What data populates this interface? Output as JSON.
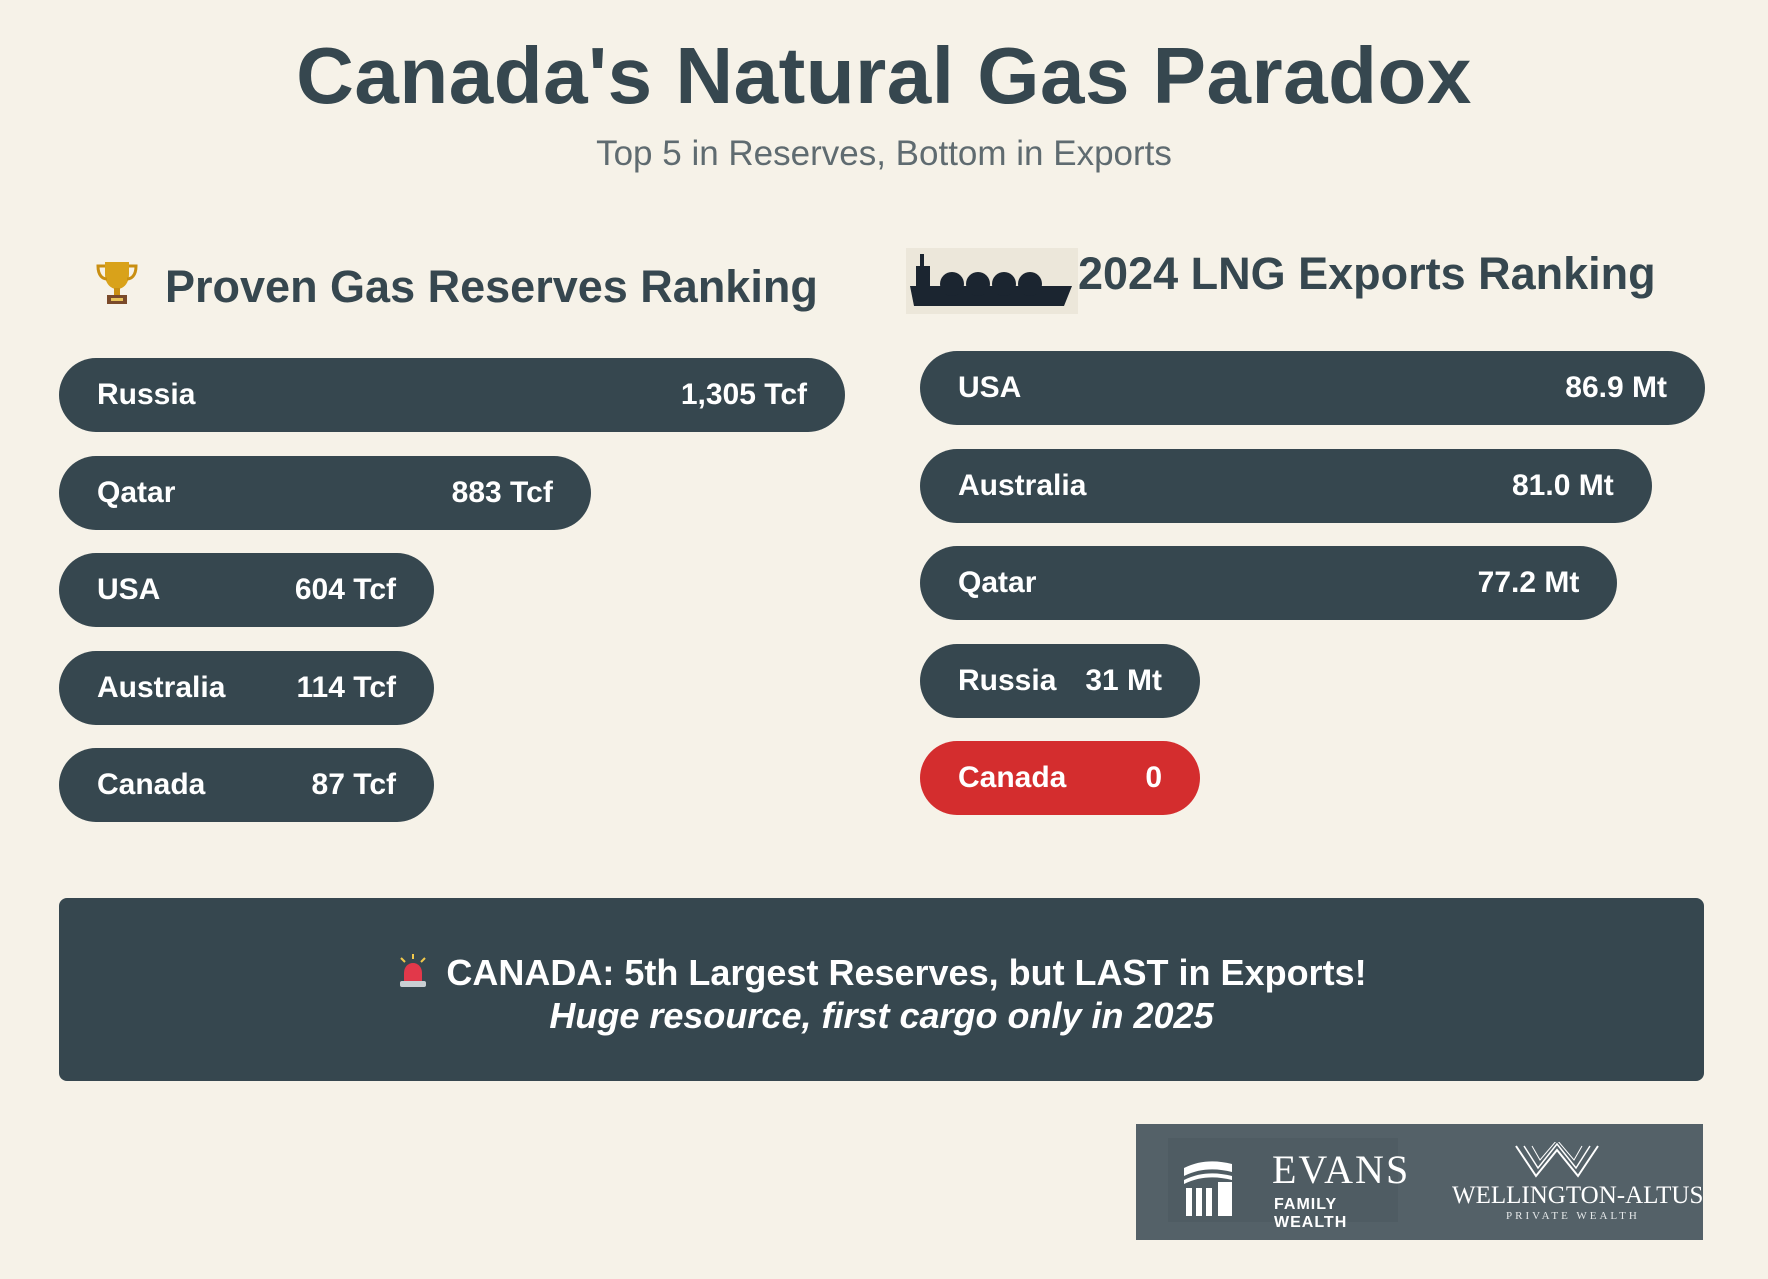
{
  "header": {
    "title": "Canada's Natural Gas Paradox",
    "subtitle": "Top 5 in Reserves, Bottom in Exports"
  },
  "reserves": {
    "heading": "Proven Gas Reserves Ranking",
    "icon": "trophy-icon"
  },
  "exports": {
    "heading": "2024 LNG Exports Ranking",
    "icon": "lng-ship-icon"
  },
  "chart_data": [
    {
      "type": "bar",
      "title": "Proven Gas Reserves Ranking",
      "orientation": "horizontal",
      "categories": [
        "Russia",
        "Qatar",
        "USA",
        "Australia",
        "Canada"
      ],
      "values": [
        1305,
        883,
        604,
        114,
        87
      ],
      "value_labels": [
        "1,305 Tcf",
        "883 Tcf",
        "604 Tcf",
        "114 Tcf",
        "87 Tcf"
      ],
      "unit": "Tcf",
      "bar_color": "#36474f"
    },
    {
      "type": "bar",
      "title": "2024 LNG Exports Ranking",
      "orientation": "horizontal",
      "categories": [
        "USA",
        "Australia",
        "Qatar",
        "Russia",
        "Canada"
      ],
      "values": [
        86.9,
        81.0,
        77.2,
        31,
        0
      ],
      "value_labels": [
        "86.9 Mt",
        "81.0 Mt",
        "77.2 Mt",
        "31 Mt",
        "0"
      ],
      "unit": "Mt",
      "bar_color": "#36474f",
      "highlight": {
        "category": "Canada",
        "color": "#d42d2e"
      }
    }
  ],
  "banner": {
    "icon": "siren-icon",
    "line1": "CANADA: 5th Largest Reserves, but LAST in Exports!",
    "line2": "Huge resource, first cargo only in 2025"
  },
  "logos": {
    "evans_name": "EVANS",
    "evans_sub": "FAMILY WEALTH",
    "wa_name": "WELLINGTON-ALTUS",
    "wa_sub": "PRIVATE WEALTH"
  }
}
